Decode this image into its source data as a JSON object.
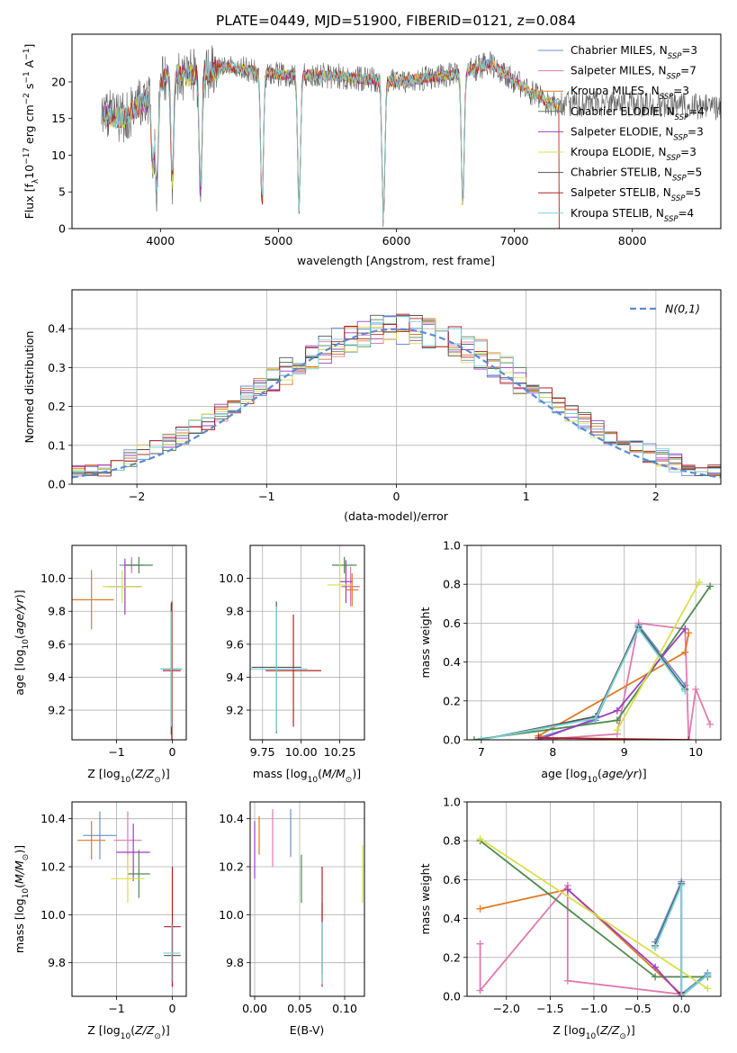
{
  "title": "PLATE=0449, MJD=51900, FIBERID=0121, z=0.084",
  "series": [
    {
      "name": "Chabrier MILES, N",
      "nssp": "=3",
      "color": "#6f8fd0"
    },
    {
      "name": "Salpeter MILES, N",
      "nssp": "=7",
      "color": "#e07ab0"
    },
    {
      "name": "Kroupa MILES, N",
      "nssp": "=3",
      "color": "#e07a28"
    },
    {
      "name": "Chabrier ELODIE, N",
      "nssp": "=4",
      "color": "#4e8a4e"
    },
    {
      "name": "Salpeter ELODIE, N",
      "nssp": "=3",
      "color": "#9b3fc0"
    },
    {
      "name": "Kroupa ELODIE, N",
      "nssp": "=3",
      "color": "#d9df4a"
    },
    {
      "name": "Chabrier STELIB, N",
      "nssp": "=5",
      "color": "#555555"
    },
    {
      "name": "Salpeter STELIB, N",
      "nssp": "=5",
      "color": "#b22222"
    },
    {
      "name": "Kroupa STELIB, N",
      "nssp": "=4",
      "color": "#79d3dc"
    }
  ],
  "chart_data": [
    {
      "id": "spectrum",
      "type": "line",
      "xlabel": "wavelength [Angstrom, rest frame]",
      "ylabel": "Flux [f",
      "xlim": [
        3250,
        8750
      ],
      "ylim": [
        0,
        26.5
      ],
      "xticks": [
        4000,
        5000,
        6000,
        7000,
        8000
      ],
      "yticks": [
        0,
        5,
        10,
        15,
        20
      ],
      "anchors": [
        [
          3500,
          15.5
        ],
        [
          3700,
          15
        ],
        [
          3800,
          16.5
        ],
        [
          3950,
          18.5
        ],
        [
          4050,
          21
        ],
        [
          4300,
          21
        ],
        [
          4600,
          22
        ],
        [
          5000,
          21
        ],
        [
          5500,
          20.8
        ],
        [
          6000,
          20
        ],
        [
          6500,
          21
        ],
        [
          6800,
          22.5
        ],
        [
          7100,
          19
        ],
        [
          7300,
          17
        ],
        [
          8000,
          17
        ],
        [
          8750,
          16.5
        ]
      ],
      "dips": [
        [
          3935,
          10
        ],
        [
          3970,
          13
        ],
        [
          4100,
          15
        ],
        [
          4340,
          16
        ],
        [
          4861,
          18
        ],
        [
          5175,
          18
        ],
        [
          5890,
          18.5
        ],
        [
          6563,
          18
        ]
      ],
      "legend": "top-right"
    },
    {
      "id": "residuals",
      "type": "histogram",
      "xlabel": "(data-model)/error",
      "ylabel": "Normed distribution",
      "xlim": [
        -2.5,
        2.5
      ],
      "ylim": [
        0,
        0.5
      ],
      "xticks": [
        -2,
        -1,
        0,
        1,
        2
      ],
      "yticks": [
        0.0,
        0.1,
        0.2,
        0.3,
        0.4
      ],
      "bin_width": 0.1,
      "curve_label": "N(0,1)",
      "grid": true,
      "legend": "top-right"
    },
    {
      "id": "age-vs-Z",
      "type": "errorbar",
      "xlabel": "Z [log10(Z/Z⊙)]",
      "ylabel": "age [log10(age/yr)]",
      "xlim": [
        -1.8,
        0.25
      ],
      "ylim": [
        9.02,
        10.2
      ],
      "xticks": [
        -1,
        0
      ],
      "yticks": [
        9.2,
        9.4,
        9.6,
        9.8,
        10.0
      ],
      "points": [
        {
          "s": 0,
          "x": -0.73,
          "y": 10.08,
          "xe": 0.22,
          "ye": 0.03
        },
        {
          "s": 1,
          "x": -0.73,
          "y": 10.08,
          "xe": 0.15,
          "ye": 0.05
        },
        {
          "s": 2,
          "x": -1.45,
          "y": 9.87,
          "xe": 0.4,
          "ye": 0.18
        },
        {
          "s": 3,
          "x": -0.6,
          "y": 10.08,
          "xe": 0.25,
          "ye": 0.05
        },
        {
          "s": 4,
          "x": -0.85,
          "y": 9.95,
          "xe": 0.3,
          "ye": 0.17
        },
        {
          "s": 5,
          "x": -0.9,
          "y": 9.95,
          "xe": 0.35,
          "ye": 0.1
        },
        {
          "s": 6,
          "x": -0.02,
          "y": 9.45,
          "xe": 0.18,
          "ye": 0.4
        },
        {
          "s": 7,
          "x": -0.01,
          "y": 9.44,
          "xe": 0.16,
          "ye": 0.42
        },
        {
          "s": 8,
          "x": -0.02,
          "y": 9.45,
          "xe": 0.2,
          "ye": 0.35
        }
      ]
    },
    {
      "id": "age-vs-mass",
      "type": "errorbar",
      "xlabel": "mass [log10(M/M⊙)]",
      "ylabel": "",
      "xlim": [
        9.67,
        10.41
      ],
      "ylim": [
        9.02,
        10.2
      ],
      "xticks": [
        9.75,
        10.0,
        10.25
      ],
      "xticklabels": [
        "9.75",
        "10.00",
        "10.25"
      ],
      "yticks": [
        9.2,
        9.4,
        9.6,
        9.8,
        10.0
      ],
      "points": [
        {
          "s": 0,
          "x": 10.32,
          "y": 9.95,
          "xe": 0.05,
          "ye": 0.08
        },
        {
          "s": 1,
          "x": 10.32,
          "y": 9.95,
          "xe": 0.06,
          "ye": 0.12
        },
        {
          "s": 2,
          "x": 10.33,
          "y": 9.93,
          "xe": 0.04,
          "ye": 0.1
        },
        {
          "s": 3,
          "x": 10.28,
          "y": 10.08,
          "xe": 0.08,
          "ye": 0.05
        },
        {
          "s": 4,
          "x": 10.29,
          "y": 9.98,
          "xe": 0.04,
          "ye": 0.13
        },
        {
          "s": 5,
          "x": 10.25,
          "y": 9.96,
          "xe": 0.08,
          "ye": 0.15
        },
        {
          "s": 6,
          "x": 9.84,
          "y": 9.46,
          "xe": 0.16,
          "ye": 0.4
        },
        {
          "s": 7,
          "x": 9.95,
          "y": 9.44,
          "xe": 0.18,
          "ye": 0.34
        },
        {
          "s": 8,
          "x": 9.84,
          "y": 9.45,
          "xe": 0.2,
          "ye": 0.38
        }
      ]
    },
    {
      "id": "weight-vs-age",
      "type": "line",
      "xlabel": "age [log10(age/yr)]",
      "ylabel": "mass weight",
      "xlim": [
        6.8,
        10.35
      ],
      "ylim": [
        0,
        1
      ],
      "xticks": [
        7,
        8,
        9,
        10
      ],
      "yticks": [
        0.0,
        0.2,
        0.4,
        0.6,
        0.8,
        1.0
      ],
      "lines": [
        {
          "s": 0,
          "pts": [
            [
              7.8,
              0.01
            ],
            [
              8.6,
              0.1
            ],
            [
              9.2,
              0.59
            ],
            [
              9.85,
              0.28
            ]
          ]
        },
        {
          "s": 1,
          "pts": [
            [
              7.8,
              0.0
            ],
            [
              8.9,
              0.03
            ],
            [
              9.2,
              0.6
            ],
            [
              9.85,
              0.57
            ],
            [
              9.9,
              0.0
            ],
            [
              10.0,
              0.26
            ],
            [
              10.2,
              0.08
            ]
          ]
        },
        {
          "s": 2,
          "pts": [
            [
              7.8,
              0.02
            ],
            [
              9.85,
              0.45
            ],
            [
              9.9,
              0.55
            ]
          ]
        },
        {
          "s": 3,
          "pts": [
            [
              6.9,
              0.0
            ],
            [
              8.9,
              0.1
            ],
            [
              10.2,
              0.79
            ]
          ]
        },
        {
          "s": 4,
          "pts": [
            [
              7.8,
              0.0
            ],
            [
              8.9,
              0.15
            ],
            [
              9.85,
              0.57
            ]
          ]
        },
        {
          "s": 5,
          "pts": [
            [
              8.9,
              0.05
            ],
            [
              10.05,
              0.81
            ]
          ]
        },
        {
          "s": 6,
          "pts": [
            [
              7.0,
              0.0
            ],
            [
              8.6,
              0.12
            ],
            [
              9.2,
              0.58
            ],
            [
              9.85,
              0.26
            ]
          ]
        },
        {
          "s": 7,
          "pts": [
            [
              7.8,
              0.01
            ],
            [
              9.9,
              0.0
            ]
          ]
        },
        {
          "s": 8,
          "pts": [
            [
              7.0,
              0.0
            ],
            [
              8.6,
              0.11
            ],
            [
              9.2,
              0.57
            ],
            [
              9.85,
              0.25
            ]
          ]
        }
      ]
    },
    {
      "id": "mass-vs-Z",
      "type": "errorbar",
      "xlabel": "Z [log10(Z/Z⊙)]",
      "ylabel": "mass [log10(M/M⊙)]",
      "xlim": [
        -1.8,
        0.25
      ],
      "ylim": [
        9.66,
        10.47
      ],
      "xticks": [
        -1,
        0
      ],
      "yticks": [
        9.8,
        10.0,
        10.2,
        10.4
      ],
      "points": [
        {
          "s": 0,
          "x": -1.3,
          "y": 10.33,
          "xe": 0.3,
          "ye": 0.1
        },
        {
          "s": 1,
          "x": -0.8,
          "y": 10.31,
          "xe": 0.25,
          "ye": 0.12
        },
        {
          "s": 2,
          "x": -1.45,
          "y": 10.31,
          "xe": 0.25,
          "ye": 0.08
        },
        {
          "s": 3,
          "x": -0.6,
          "y": 10.17,
          "xe": 0.2,
          "ye": 0.1
        },
        {
          "s": 4,
          "x": -0.7,
          "y": 10.26,
          "xe": 0.3,
          "ye": 0.12
        },
        {
          "s": 5,
          "x": -0.8,
          "y": 10.15,
          "xe": 0.3,
          "ye": 0.1
        },
        {
          "s": 6,
          "x": 0.0,
          "y": 9.83,
          "xe": 0.15,
          "ye": 0.13
        },
        {
          "s": 7,
          "x": 0.0,
          "y": 9.95,
          "xe": 0.15,
          "ye": 0.25
        },
        {
          "s": 8,
          "x": -0.01,
          "y": 9.84,
          "xe": 0.15,
          "ye": 0.12
        }
      ]
    },
    {
      "id": "mass-vs-ebv",
      "type": "errorbar",
      "xlabel": "E(B-V)",
      "ylabel": "",
      "xlim": [
        -0.005,
        0.122
      ],
      "ylim": [
        9.66,
        10.47
      ],
      "xticks": [
        0.0,
        0.05,
        0.1
      ],
      "xticklabels": [
        "0.00",
        "0.05",
        "0.10"
      ],
      "yticks": [
        9.8,
        10.0,
        10.2,
        10.4
      ],
      "points": [
        {
          "s": 0,
          "x": 0.04,
          "y": 10.34,
          "xe": 0,
          "ye": 0.1
        },
        {
          "s": 1,
          "x": 0.02,
          "y": 10.32,
          "xe": 0,
          "ye": 0.12
        },
        {
          "s": 2,
          "x": 0.005,
          "y": 10.33,
          "xe": 0,
          "ye": 0.08
        },
        {
          "s": 3,
          "x": 0.052,
          "y": 10.15,
          "xe": 0,
          "ye": 0.1
        },
        {
          "s": 4,
          "x": 0.0,
          "y": 10.27,
          "xe": 0,
          "ye": 0.12
        },
        {
          "s": 5,
          "x": 0.12,
          "y": 10.17,
          "xe": 0,
          "ye": 0.12
        },
        {
          "s": 6,
          "x": 0.075,
          "y": 9.9,
          "xe": 0,
          "ye": 0.15
        },
        {
          "s": 7,
          "x": 0.075,
          "y": 9.95,
          "xe": 0,
          "ye": 0.25
        },
        {
          "s": 8,
          "x": 0.075,
          "y": 9.84,
          "xe": 0,
          "ye": 0.13
        }
      ]
    },
    {
      "id": "weight-vs-Z",
      "type": "line",
      "xlabel": "Z [log10(Z/Z⊙)]",
      "ylabel": "mass weight",
      "xlim": [
        -2.45,
        0.45
      ],
      "ylim": [
        0,
        1
      ],
      "xticks": [
        -2.0,
        -1.5,
        -1.0,
        -0.5,
        0.0
      ],
      "yticks": [
        0.0,
        0.2,
        0.4,
        0.6,
        0.8,
        1.0
      ],
      "lines": [
        {
          "s": 0,
          "pts": [
            [
              -0.3,
              0.28
            ],
            [
              0.0,
              0.59
            ],
            [
              0.0,
              0.01
            ],
            [
              0.3,
              0.12
            ]
          ]
        },
        {
          "s": 1,
          "pts": [
            [
              -2.3,
              0.27
            ],
            [
              -2.3,
              0.03
            ],
            [
              -1.3,
              0.57
            ],
            [
              -1.3,
              0.08
            ],
            [
              0.0,
              0.01
            ]
          ]
        },
        {
          "s": 2,
          "pts": [
            [
              -2.3,
              0.45
            ],
            [
              -1.3,
              0.55
            ],
            [
              0.0,
              0.01
            ]
          ]
        },
        {
          "s": 3,
          "pts": [
            [
              -2.3,
              0.8
            ],
            [
              -0.3,
              0.1
            ],
            [
              0.3,
              0.1
            ]
          ]
        },
        {
          "s": 4,
          "pts": [
            [
              -1.3,
              0.55
            ],
            [
              -0.3,
              0.15
            ],
            [
              0.0,
              0.0
            ]
          ]
        },
        {
          "s": 5,
          "pts": [
            [
              -2.3,
              0.81
            ],
            [
              0.3,
              0.04
            ]
          ]
        },
        {
          "s": 6,
          "pts": [
            [
              -0.3,
              0.26
            ],
            [
              0.0,
              0.58
            ],
            [
              0.0,
              0.0
            ],
            [
              0.3,
              0.11
            ]
          ]
        },
        {
          "s": 7,
          "pts": [
            [
              0.0,
              0.02
            ]
          ]
        },
        {
          "s": 8,
          "pts": [
            [
              -0.3,
              0.25
            ],
            [
              0.0,
              0.57
            ],
            [
              0.0,
              0.0
            ],
            [
              0.3,
              0.11
            ]
          ]
        }
      ]
    }
  ]
}
